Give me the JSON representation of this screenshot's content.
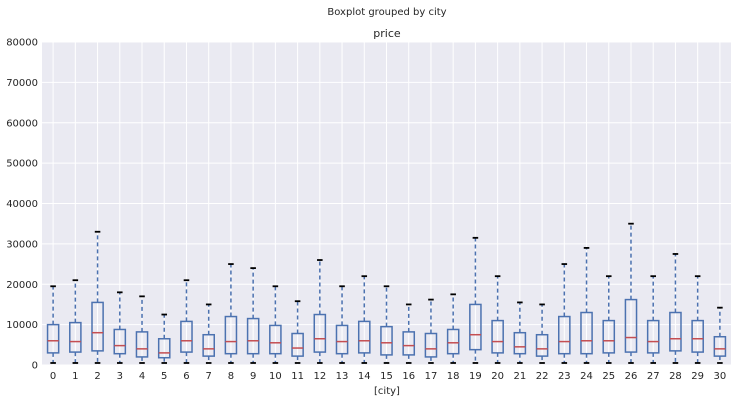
{
  "chart_data": {
    "type": "box",
    "suptitle": "Boxplot grouped by city",
    "title": "price",
    "xlabel": "[city]",
    "ylabel": "",
    "ylim": [
      0,
      80000
    ],
    "yticks": [
      0,
      10000,
      20000,
      30000,
      40000,
      50000,
      60000,
      70000,
      80000
    ],
    "grid": true,
    "colors": {
      "background": "#eaeaf2",
      "grid": "#ffffff",
      "box": "#4c72b0",
      "median": "#c44e52",
      "cap": "#000000"
    },
    "categories": [
      "0",
      "1",
      "2",
      "3",
      "4",
      "5",
      "6",
      "7",
      "8",
      "9",
      "10",
      "11",
      "12",
      "13",
      "14",
      "15",
      "16",
      "17",
      "18",
      "19",
      "20",
      "21",
      "22",
      "23",
      "24",
      "25",
      "26",
      "27",
      "28",
      "29",
      "30"
    ],
    "boxes": [
      {
        "whislo": 500,
        "q1": 3000,
        "med": 6000,
        "q3": 10000,
        "whishi": 19500
      },
      {
        "whislo": 500,
        "q1": 3200,
        "med": 5800,
        "q3": 10500,
        "whishi": 21000
      },
      {
        "whislo": 500,
        "q1": 3500,
        "med": 8000,
        "q3": 15500,
        "whishi": 33000
      },
      {
        "whislo": 500,
        "q1": 2800,
        "med": 4800,
        "q3": 8800,
        "whishi": 18000
      },
      {
        "whislo": 500,
        "q1": 2000,
        "med": 4000,
        "q3": 8200,
        "whishi": 17000
      },
      {
        "whislo": 500,
        "q1": 1800,
        "med": 3000,
        "q3": 6500,
        "whishi": 12500
      },
      {
        "whislo": 500,
        "q1": 3200,
        "med": 6000,
        "q3": 10800,
        "whishi": 21000
      },
      {
        "whislo": 500,
        "q1": 2200,
        "med": 4000,
        "q3": 7500,
        "whishi": 15000
      },
      {
        "whislo": 500,
        "q1": 2800,
        "med": 5800,
        "q3": 12000,
        "whishi": 25000
      },
      {
        "whislo": 500,
        "q1": 2800,
        "med": 6000,
        "q3": 11500,
        "whishi": 24000
      },
      {
        "whislo": 500,
        "q1": 2800,
        "med": 5500,
        "q3": 9800,
        "whishi": 19500
      },
      {
        "whislo": 500,
        "q1": 2200,
        "med": 4200,
        "q3": 7800,
        "whishi": 15800
      },
      {
        "whislo": 500,
        "q1": 3200,
        "med": 6500,
        "q3": 12500,
        "whishi": 26000
      },
      {
        "whislo": 500,
        "q1": 2800,
        "med": 5800,
        "q3": 9800,
        "whishi": 19500
      },
      {
        "whislo": 500,
        "q1": 3000,
        "med": 6000,
        "q3": 10800,
        "whishi": 22000
      },
      {
        "whislo": 500,
        "q1": 2500,
        "med": 5500,
        "q3": 9500,
        "whishi": 19500
      },
      {
        "whislo": 500,
        "q1": 2500,
        "med": 4800,
        "q3": 8200,
        "whishi": 15000
      },
      {
        "whislo": 500,
        "q1": 2000,
        "med": 4000,
        "q3": 7800,
        "whishi": 16200
      },
      {
        "whislo": 500,
        "q1": 2800,
        "med": 5500,
        "q3": 8800,
        "whishi": 17500
      },
      {
        "whislo": 500,
        "q1": 3800,
        "med": 7500,
        "q3": 15000,
        "whishi": 31500
      },
      {
        "whislo": 500,
        "q1": 3000,
        "med": 5800,
        "q3": 11000,
        "whishi": 22000
      },
      {
        "whislo": 500,
        "q1": 2800,
        "med": 4500,
        "q3": 8000,
        "whishi": 15500
      },
      {
        "whislo": 500,
        "q1": 2200,
        "med": 4000,
        "q3": 7500,
        "whishi": 15000
      },
      {
        "whislo": 500,
        "q1": 2800,
        "med": 5800,
        "q3": 12000,
        "whishi": 25000
      },
      {
        "whislo": 500,
        "q1": 2800,
        "med": 6000,
        "q3": 13000,
        "whishi": 29000
      },
      {
        "whislo": 500,
        "q1": 3000,
        "med": 6000,
        "q3": 11000,
        "whishi": 22000
      },
      {
        "whislo": 500,
        "q1": 3200,
        "med": 6800,
        "q3": 16200,
        "whishi": 35000
      },
      {
        "whislo": 500,
        "q1": 3000,
        "med": 5800,
        "q3": 11000,
        "whishi": 22000
      },
      {
        "whislo": 500,
        "q1": 3500,
        "med": 6500,
        "q3": 13000,
        "whishi": 27500
      },
      {
        "whislo": 500,
        "q1": 3200,
        "med": 6500,
        "q3": 11000,
        "whishi": 22000
      },
      {
        "whislo": 500,
        "q1": 2200,
        "med": 4000,
        "q3": 7000,
        "whishi": 14200
      }
    ]
  }
}
